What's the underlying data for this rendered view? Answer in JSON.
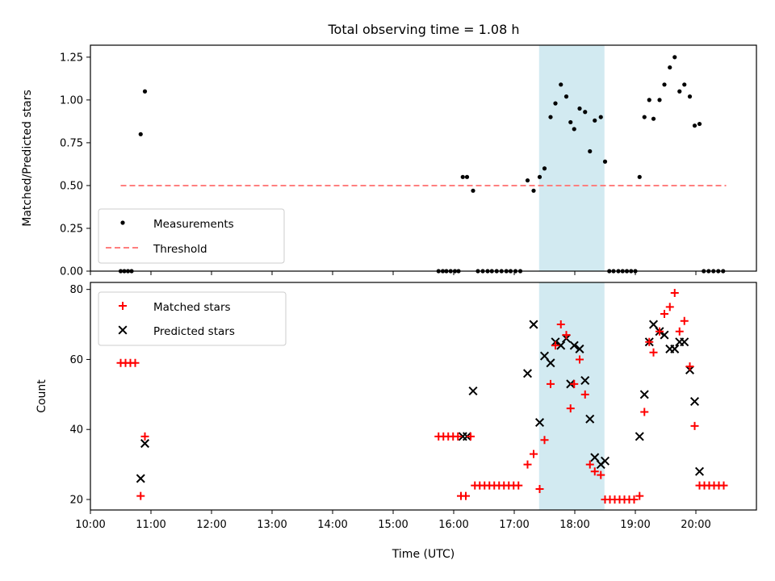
{
  "chart_data": {
    "title": "Total observing time = 1.08 h",
    "xlabel": "Time (UTC)",
    "x_ticks": [
      "10:00",
      "11:00",
      "12:00",
      "13:00",
      "14:00",
      "15:00",
      "16:00",
      "17:00",
      "18:00",
      "19:00",
      "20:00"
    ],
    "x_range_hours": [
      10.0,
      21.0
    ],
    "highlight_span_hours": [
      17.41,
      18.49
    ],
    "colors": {
      "measurements": "#000000",
      "threshold": "#ff7f7f",
      "matched": "#ff0000",
      "predicted": "#000000",
      "highlight": "#add8e6"
    },
    "panels": [
      {
        "type": "scatter",
        "ylabel": "Matched/Predicted stars",
        "ylim": [
          0,
          1.32
        ],
        "y_ticks": [
          "0.00",
          "0.25",
          "0.50",
          "0.75",
          "1.00",
          "1.25"
        ],
        "legend": {
          "placement": "lower-left",
          "entries": [
            "Measurements",
            "Threshold"
          ]
        },
        "threshold": {
          "value": 0.5,
          "x_start": 10.5,
          "x_end": 20.5
        },
        "measurements": [
          [
            10.5,
            0
          ],
          [
            10.56,
            0
          ],
          [
            10.62,
            0
          ],
          [
            10.68,
            0
          ],
          [
            10.83,
            0.8
          ],
          [
            10.9,
            1.05
          ],
          [
            15.75,
            0
          ],
          [
            15.82,
            0
          ],
          [
            15.88,
            0
          ],
          [
            15.95,
            0
          ],
          [
            16.02,
            0
          ],
          [
            16.08,
            0
          ],
          [
            16.15,
            0.55
          ],
          [
            16.22,
            0.55
          ],
          [
            16.32,
            0.47
          ],
          [
            16.4,
            0
          ],
          [
            16.48,
            0
          ],
          [
            16.56,
            0
          ],
          [
            16.63,
            0
          ],
          [
            16.71,
            0
          ],
          [
            16.79,
            0
          ],
          [
            16.87,
            0
          ],
          [
            16.94,
            0
          ],
          [
            17.02,
            0
          ],
          [
            17.1,
            0
          ],
          [
            17.22,
            0.53
          ],
          [
            17.32,
            0.47
          ],
          [
            17.42,
            0.55
          ],
          [
            17.5,
            0.6
          ],
          [
            17.6,
            0.9
          ],
          [
            17.68,
            0.98
          ],
          [
            17.77,
            1.09
          ],
          [
            17.86,
            1.02
          ],
          [
            17.93,
            0.87
          ],
          [
            17.99,
            0.83
          ],
          [
            18.08,
            0.95
          ],
          [
            18.17,
            0.93
          ],
          [
            18.25,
            0.7
          ],
          [
            18.33,
            0.88
          ],
          [
            18.43,
            0.9
          ],
          [
            18.5,
            0.64
          ],
          [
            18.57,
            0
          ],
          [
            18.64,
            0
          ],
          [
            18.72,
            0
          ],
          [
            18.79,
            0
          ],
          [
            18.86,
            0
          ],
          [
            18.93,
            0
          ],
          [
            19.0,
            0
          ],
          [
            19.07,
            0.55
          ],
          [
            19.15,
            0.9
          ],
          [
            19.23,
            1.0
          ],
          [
            19.3,
            0.89
          ],
          [
            19.4,
            1.0
          ],
          [
            19.48,
            1.09
          ],
          [
            19.57,
            1.19
          ],
          [
            19.65,
            1.25
          ],
          [
            19.73,
            1.05
          ],
          [
            19.81,
            1.09
          ],
          [
            19.9,
            1.02
          ],
          [
            19.98,
            0.85
          ],
          [
            20.06,
            0.86
          ],
          [
            20.13,
            0
          ],
          [
            20.21,
            0
          ],
          [
            20.29,
            0
          ],
          [
            20.37,
            0
          ],
          [
            20.45,
            0
          ]
        ]
      },
      {
        "type": "scatter",
        "ylabel": "Count",
        "ylim": [
          17,
          82
        ],
        "y_ticks": [
          "20",
          "40",
          "60",
          "80"
        ],
        "y_tick_values": [
          20,
          40,
          60,
          80
        ],
        "legend": {
          "placement": "upper-left",
          "entries": [
            "Matched stars",
            "Predicted stars"
          ]
        },
        "matched": [
          [
            10.5,
            59
          ],
          [
            10.58,
            59
          ],
          [
            10.66,
            59
          ],
          [
            10.74,
            59
          ],
          [
            10.83,
            21
          ],
          [
            10.9,
            38
          ],
          [
            15.75,
            38
          ],
          [
            15.83,
            38
          ],
          [
            15.91,
            38
          ],
          [
            15.99,
            38
          ],
          [
            16.07,
            38
          ],
          [
            16.12,
            21
          ],
          [
            16.2,
            21
          ],
          [
            16.28,
            38
          ],
          [
            16.35,
            24
          ],
          [
            16.43,
            24
          ],
          [
            16.51,
            24
          ],
          [
            16.59,
            24
          ],
          [
            16.67,
            24
          ],
          [
            16.75,
            24
          ],
          [
            16.83,
            24
          ],
          [
            16.91,
            24
          ],
          [
            16.99,
            24
          ],
          [
            17.07,
            24
          ],
          [
            17.22,
            30
          ],
          [
            17.32,
            33
          ],
          [
            17.42,
            23
          ],
          [
            17.5,
            37
          ],
          [
            17.6,
            53
          ],
          [
            17.68,
            64
          ],
          [
            17.77,
            70
          ],
          [
            17.86,
            67
          ],
          [
            17.93,
            46
          ],
          [
            17.99,
            53
          ],
          [
            18.08,
            60
          ],
          [
            18.17,
            50
          ],
          [
            18.25,
            30
          ],
          [
            18.33,
            28
          ],
          [
            18.43,
            27
          ],
          [
            18.5,
            20
          ],
          [
            18.58,
            20
          ],
          [
            18.66,
            20
          ],
          [
            18.74,
            20
          ],
          [
            18.82,
            20
          ],
          [
            18.9,
            20
          ],
          [
            18.98,
            20
          ],
          [
            19.07,
            21
          ],
          [
            19.15,
            45
          ],
          [
            19.23,
            65
          ],
          [
            19.3,
            62
          ],
          [
            19.4,
            68
          ],
          [
            19.48,
            73
          ],
          [
            19.57,
            75
          ],
          [
            19.65,
            79
          ],
          [
            19.73,
            68
          ],
          [
            19.81,
            71
          ],
          [
            19.9,
            58
          ],
          [
            19.98,
            41
          ],
          [
            20.06,
            24
          ],
          [
            20.14,
            24
          ],
          [
            20.22,
            24
          ],
          [
            20.3,
            24
          ],
          [
            20.38,
            24
          ],
          [
            20.46,
            24
          ]
        ],
        "predicted": [
          [
            10.83,
            26
          ],
          [
            10.9,
            36
          ],
          [
            16.15,
            38
          ],
          [
            16.22,
            38
          ],
          [
            16.32,
            51
          ],
          [
            17.22,
            56
          ],
          [
            17.32,
            70
          ],
          [
            17.42,
            42
          ],
          [
            17.5,
            61
          ],
          [
            17.6,
            59
          ],
          [
            17.68,
            65
          ],
          [
            17.77,
            64
          ],
          [
            17.86,
            66
          ],
          [
            17.93,
            53
          ],
          [
            17.99,
            64
          ],
          [
            18.08,
            63
          ],
          [
            18.17,
            54
          ],
          [
            18.25,
            43
          ],
          [
            18.33,
            32
          ],
          [
            18.43,
            30
          ],
          [
            18.5,
            31
          ],
          [
            19.07,
            38
          ],
          [
            19.15,
            50
          ],
          [
            19.23,
            65
          ],
          [
            19.3,
            70
          ],
          [
            19.4,
            68
          ],
          [
            19.48,
            67
          ],
          [
            19.57,
            63
          ],
          [
            19.65,
            63
          ],
          [
            19.73,
            65
          ],
          [
            19.81,
            65
          ],
          [
            19.9,
            57
          ],
          [
            19.98,
            48
          ],
          [
            20.06,
            28
          ]
        ]
      }
    ]
  }
}
